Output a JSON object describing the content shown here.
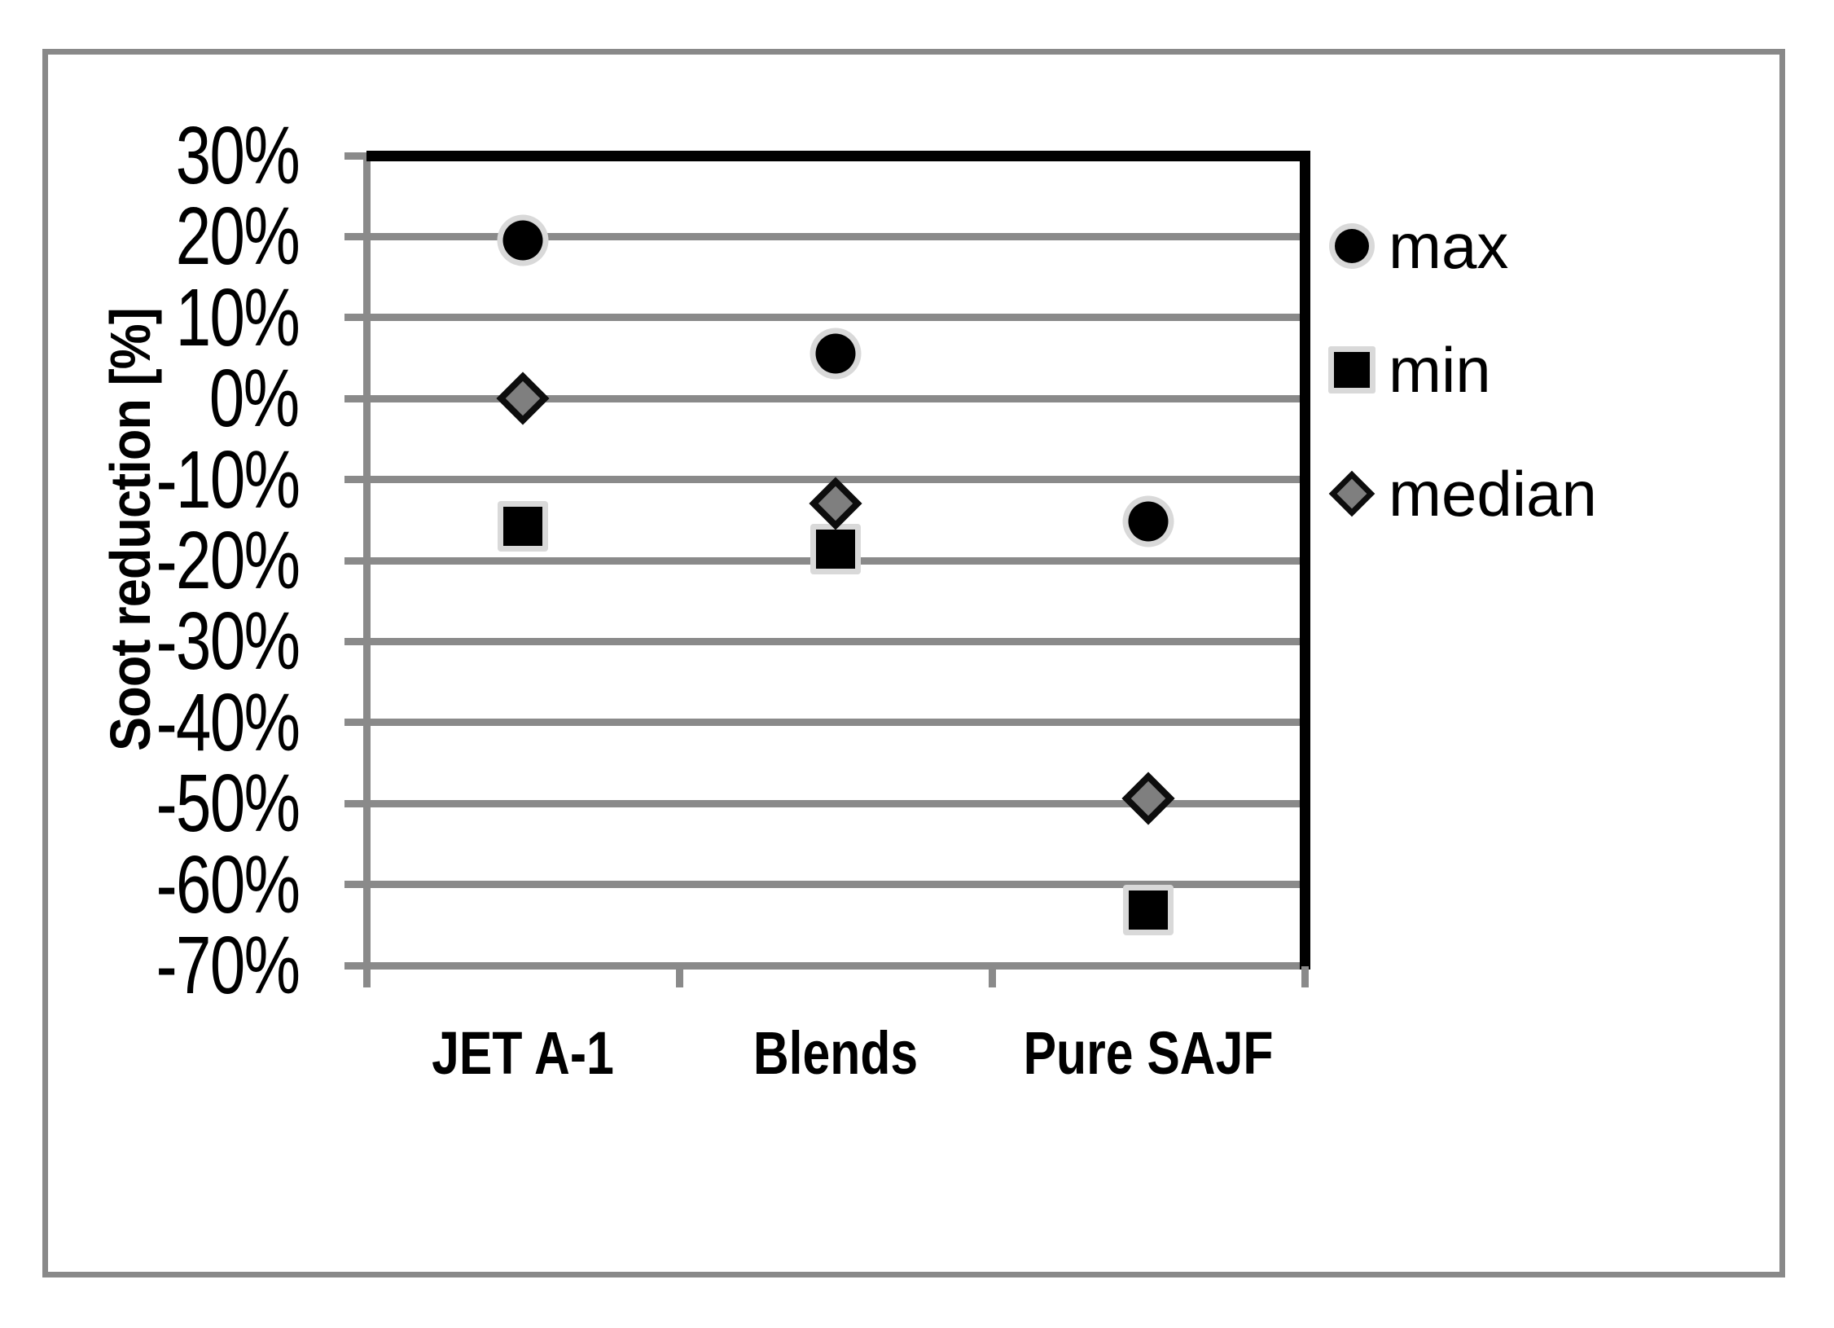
{
  "chart_data": {
    "type": "scatter",
    "categories": [
      "JET A-1",
      "Blends",
      "Pure SAJF"
    ],
    "series": [
      {
        "name": "max",
        "marker": "circle",
        "values": [
          19.5,
          5.6,
          -15.2
        ]
      },
      {
        "name": "min",
        "marker": "square",
        "values": [
          -15.8,
          -18.6,
          -63.2
        ]
      },
      {
        "name": "median",
        "marker": "diamond",
        "values": [
          0.0,
          -13.0,
          -49.4
        ]
      }
    ],
    "ylabel": "Soot reduction [%]",
    "y_ticks": [
      {
        "label": "30%",
        "value": 30
      },
      {
        "label": "20%",
        "value": 20
      },
      {
        "label": "10%",
        "value": 10
      },
      {
        "label": "0%",
        "value": 0
      },
      {
        "label": "-10%",
        "value": -10
      },
      {
        "label": "-20%",
        "value": -20
      },
      {
        "label": "-30%",
        "value": -30
      },
      {
        "label": "-40%",
        "value": -40
      },
      {
        "label": "-50%",
        "value": -50
      },
      {
        "label": "-60%",
        "value": -60
      },
      {
        "label": "-70%",
        "value": -70
      }
    ],
    "ylim": [
      -70,
      30
    ],
    "grid": "horizontal",
    "legend_position": "right-outside"
  },
  "colors": {
    "marker_black": "#000000",
    "marker_halo": "#d9d9d9",
    "diamond_fill": "#7f7f7f",
    "diamond_border": "#0d0d0d",
    "gridline": "#8a8a8a",
    "plot_border_black": "#000000",
    "figure_border": "#898989",
    "text": "#000000",
    "background": "#ffffff"
  }
}
